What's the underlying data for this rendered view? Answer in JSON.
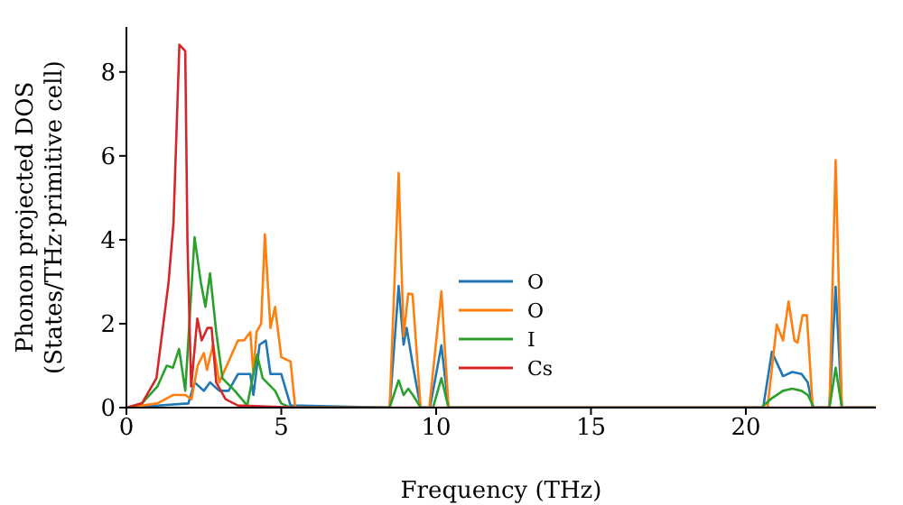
{
  "chart_data": {
    "type": "line",
    "xlabel": "Frequency (THz)",
    "ylabel": "Phonon projected DOS\n(States/THz·primitive cell)",
    "xlim": [
      0,
      24.2
    ],
    "ylim": [
      0,
      9.07
    ],
    "xticks": [
      0,
      5,
      10,
      15,
      20
    ],
    "yticks": [
      0,
      2,
      4,
      6,
      8
    ],
    "legend": "center",
    "marker": "none",
    "line_style": "solid",
    "series": [
      {
        "name": "O",
        "color": "#1f77b4",
        "x": [
          0,
          1,
          2,
          2.2,
          2.5,
          2.7,
          3.0,
          3.3,
          3.6,
          4.0,
          4.1,
          4.3,
          4.5,
          4.65,
          5.0,
          5.3,
          8.5,
          8.79,
          8.95,
          9.05,
          9.25,
          9.5,
          9.8,
          10.17,
          10.4,
          20.56,
          20.84,
          21.2,
          21.5,
          21.8,
          22.0,
          22.16,
          22.7,
          22.9,
          23.1,
          24.2
        ],
        "values": [
          0,
          0.05,
          0.1,
          0.6,
          0.4,
          0.6,
          0.4,
          0.4,
          0.8,
          0.8,
          0.3,
          1.5,
          1.6,
          0.8,
          0.8,
          0.05,
          0,
          2.9,
          1.5,
          1.9,
          1.0,
          0,
          0,
          1.48,
          0,
          0,
          1.33,
          0.75,
          0.85,
          0.8,
          0.6,
          0,
          0,
          2.88,
          0,
          0
        ]
      },
      {
        "name": "O",
        "color": "#ff7f0e",
        "x": [
          0,
          1,
          1.5,
          1.9,
          2.1,
          2.3,
          2.5,
          2.6,
          2.8,
          3.0,
          3.3,
          3.6,
          3.8,
          4.0,
          4.1,
          4.2,
          4.35,
          4.47,
          4.65,
          4.8,
          5.0,
          5.3,
          5.45,
          8.5,
          8.79,
          8.95,
          9.1,
          9.24,
          9.5,
          9.78,
          10.17,
          10.4,
          20.7,
          21.0,
          21.2,
          21.38,
          21.57,
          21.67,
          21.83,
          21.97,
          22.16,
          22.7,
          22.9,
          23.1,
          24.2
        ],
        "values": [
          0,
          0.1,
          0.3,
          0.3,
          0.2,
          1.0,
          1.3,
          0.9,
          1.5,
          0.6,
          1.1,
          1.6,
          1.6,
          1.8,
          0.8,
          1.8,
          2.0,
          4.13,
          1.9,
          2.4,
          1.2,
          1.1,
          0,
          0,
          5.59,
          1.7,
          2.72,
          2.7,
          0,
          0,
          2.77,
          0,
          0,
          1.98,
          1.6,
          2.53,
          1.6,
          1.55,
          2.2,
          2.2,
          0,
          0,
          5.9,
          0,
          0
        ]
      },
      {
        "name": "I",
        "color": "#2ca02c",
        "x": [
          0,
          0.5,
          1,
          1.3,
          1.5,
          1.7,
          1.9,
          2.2,
          2.4,
          2.55,
          2.7,
          2.9,
          3.1,
          3.5,
          3.9,
          4.22,
          4.4,
          4.8,
          5.0,
          5.3,
          8.5,
          8.79,
          8.95,
          9.1,
          9.25,
          9.5,
          9.9,
          10.17,
          10.4,
          20.5,
          20.8,
          21.2,
          21.5,
          21.8,
          22.0,
          22.2,
          22.7,
          22.9,
          23.1,
          24.2
        ],
        "values": [
          0,
          0.1,
          0.5,
          1.0,
          0.95,
          1.4,
          0.4,
          4.06,
          3.0,
          2.4,
          3.2,
          1.8,
          0.7,
          0.4,
          0.05,
          1.26,
          0.7,
          0.4,
          0.1,
          0,
          0,
          0.65,
          0.3,
          0.45,
          0.3,
          0,
          0,
          0.7,
          0,
          0,
          0.2,
          0.4,
          0.45,
          0.4,
          0.3,
          0,
          0,
          0.95,
          0,
          0
        ]
      },
      {
        "name": "Cs",
        "color": "#d62728",
        "x": [
          0,
          0.5,
          0.97,
          1.36,
          1.52,
          1.71,
          1.9,
          1.97,
          2.09,
          2.29,
          2.43,
          2.62,
          2.75,
          2.9,
          3.2,
          3.6,
          5.5,
          24.2
        ],
        "values": [
          0,
          0.1,
          0.7,
          2.98,
          4.4,
          8.65,
          8.5,
          4.0,
          0.5,
          2.12,
          1.6,
          1.9,
          1.9,
          0.6,
          0.2,
          0.05,
          0,
          0
        ]
      }
    ]
  }
}
